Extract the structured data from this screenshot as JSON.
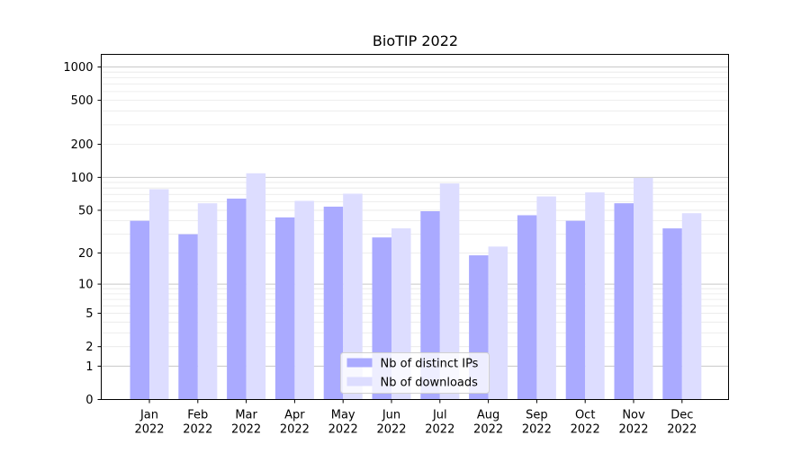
{
  "chart_data": {
    "type": "bar",
    "title": "BioTIP 2022",
    "xlabel": "",
    "ylabel": "",
    "scale": "symlog",
    "ylim": [
      0,
      1300
    ],
    "yticks": [
      0,
      1,
      2,
      5,
      10,
      20,
      50,
      100,
      200,
      500,
      1000
    ],
    "grid": true,
    "legend_position": "lower center",
    "categories": [
      "Jan\n2022",
      "Feb\n2022",
      "Mar\n2022",
      "Apr\n2022",
      "May\n2022",
      "Jun\n2022",
      "Jul\n2022",
      "Aug\n2022",
      "Sep\n2022",
      "Oct\n2022",
      "Nov\n2022",
      "Dec\n2022"
    ],
    "series": [
      {
        "name": "Nb of distinct IPs",
        "color": "#aaaaff",
        "values": [
          40,
          30,
          64,
          43,
          54,
          28,
          49,
          19,
          45,
          40,
          58,
          34
        ]
      },
      {
        "name": "Nb of downloads",
        "color": "#ddddff",
        "values": [
          78,
          58,
          109,
          61,
          71,
          34,
          88,
          23,
          67,
          73,
          99,
          47
        ]
      }
    ]
  }
}
